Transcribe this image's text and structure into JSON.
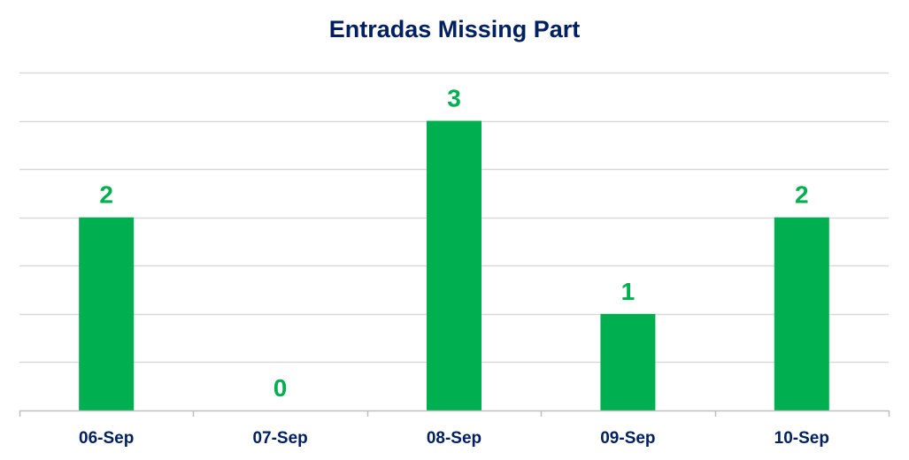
{
  "chart_data": {
    "type": "bar",
    "title": "Entradas Missing Part",
    "categories": [
      "06-Sep",
      "07-Sep",
      "08-Sep",
      "09-Sep",
      "10-Sep"
    ],
    "values": [
      2,
      0,
      3,
      1,
      2
    ],
    "xlabel": "",
    "ylabel": "",
    "ylim": [
      0,
      3.5
    ],
    "grid": true,
    "legend": "none",
    "colors": {
      "bar": "#00B050",
      "data_label": "#00B050",
      "title": "#002060",
      "category_label": "#002060",
      "gridline": "#D9D9D9",
      "axis": "#BFBFBF"
    }
  }
}
